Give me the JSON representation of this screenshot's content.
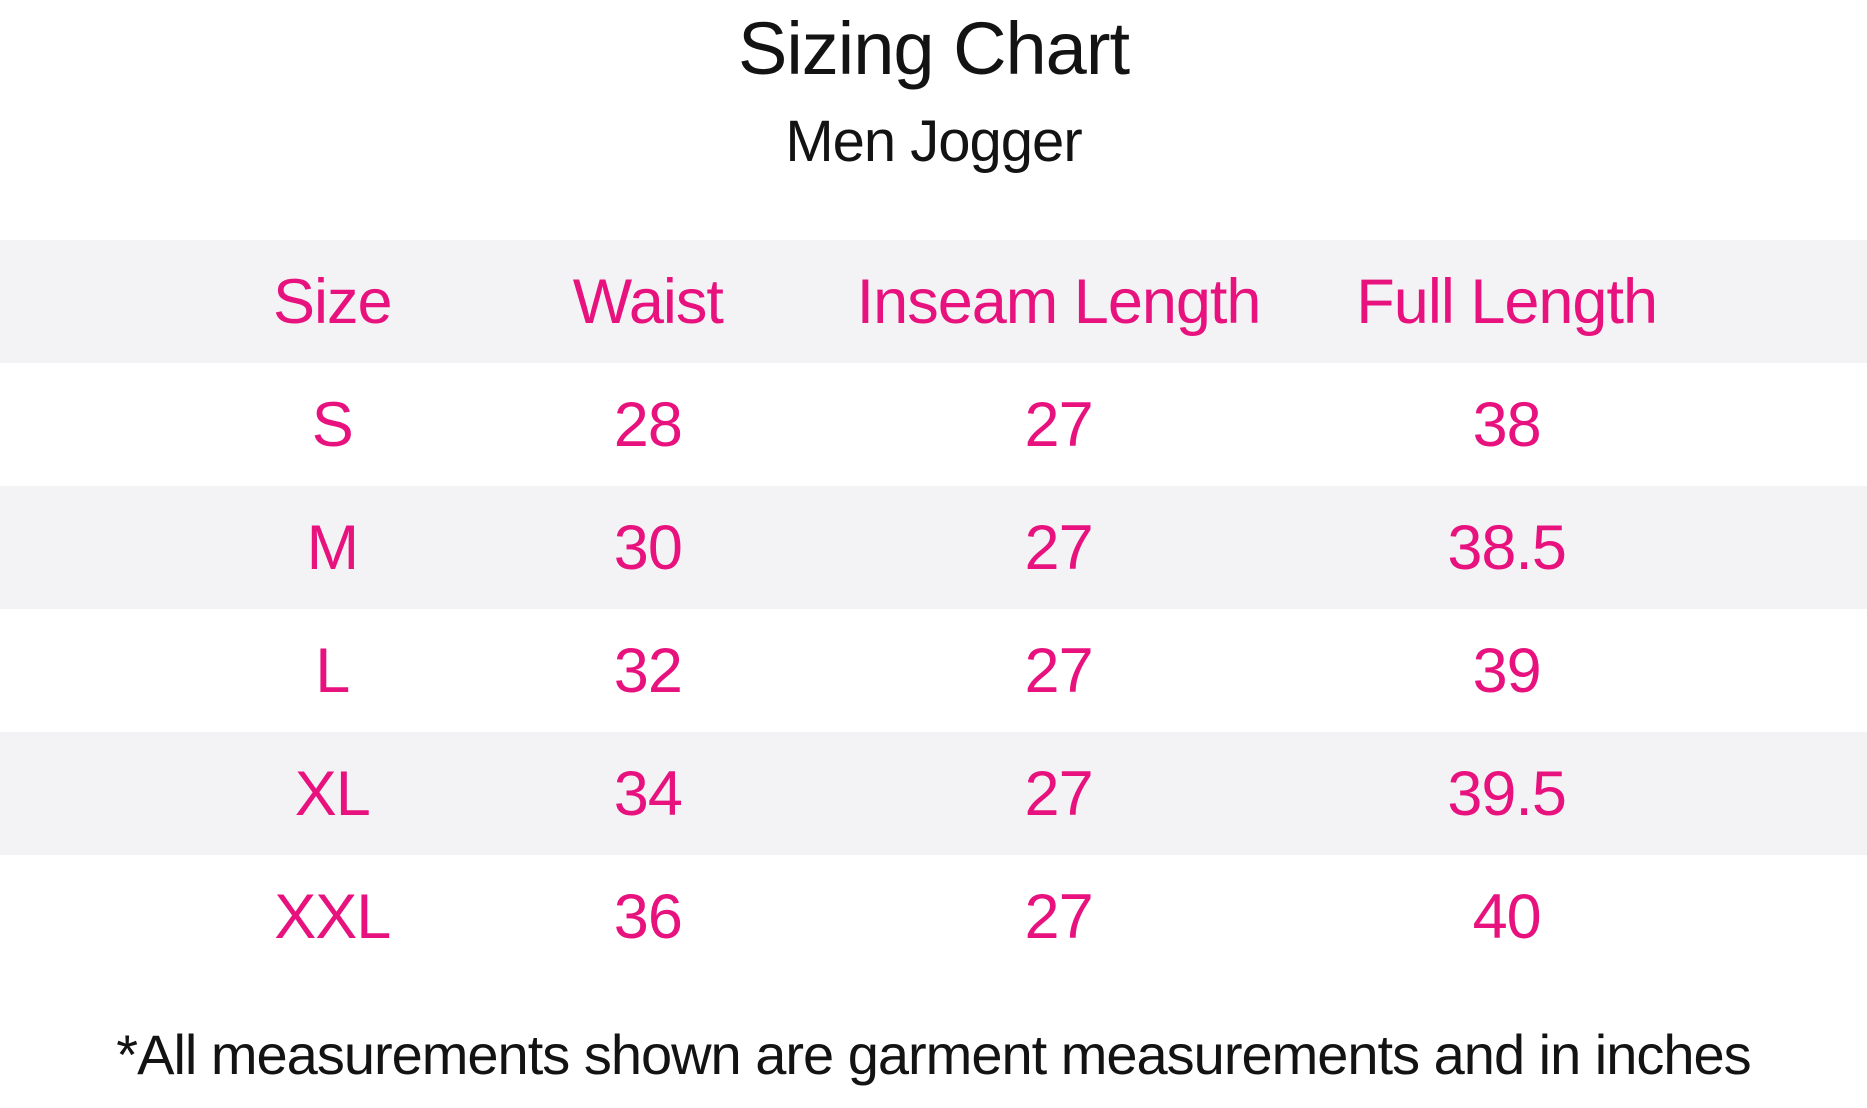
{
  "chart_data": {
    "type": "table",
    "title": "Sizing Chart",
    "subtitle": "Men Jogger",
    "columns": [
      "Size",
      "Waist",
      "Inseam Length",
      "Full Length"
    ],
    "rows": [
      [
        "S",
        "28",
        "27",
        "38"
      ],
      [
        "M",
        "30",
        "27",
        "38.5"
      ],
      [
        "L",
        "32",
        "27",
        "39"
      ],
      [
        "XL",
        "34",
        "27",
        "39.5"
      ],
      [
        "XXL",
        "36",
        "27",
        "40"
      ]
    ],
    "footnote": "*All measurements shown are garment measurements and in inches",
    "units": "inches",
    "layout": {
      "striped_rows": true,
      "stripe_pattern": "header, M and XL rows shaded"
    }
  },
  "colors": {
    "accent_pink": "#e8127e",
    "row_stripe": "#f3f3f5",
    "text_black": "#131313",
    "page_bg": "#ffffff"
  }
}
